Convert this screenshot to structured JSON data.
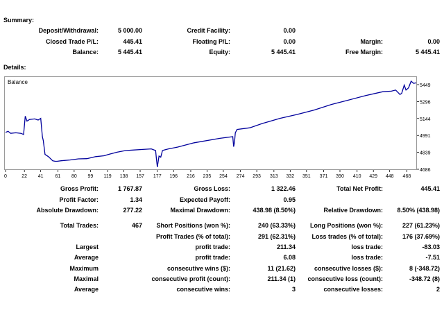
{
  "summary": {
    "heading": "Summary:",
    "rows": [
      [
        {
          "label": "Deposit/Withdrawal:",
          "value": "5 000.00"
        },
        {
          "label": "Credit Facility:",
          "value": "0.00"
        },
        {
          "label": "",
          "value": ""
        }
      ],
      [
        {
          "label": "Closed Trade P/L:",
          "value": "445.41"
        },
        {
          "label": "Floating P/L:",
          "value": "0.00"
        },
        {
          "label": "Margin:",
          "value": "0.00"
        }
      ],
      [
        {
          "label": "Balance:",
          "value": "5 445.41"
        },
        {
          "label": "Equity:",
          "value": "5 445.41"
        },
        {
          "label": "Free Margin:",
          "value": "5 445.41"
        }
      ]
    ]
  },
  "details": {
    "heading": "Details:"
  },
  "chart_data": {
    "type": "line",
    "title": "Balance",
    "xlabel": "",
    "ylabel": "",
    "xlim": [
      0,
      479
    ],
    "ylim": [
      4686,
      5502
    ],
    "x_ticks": [
      0,
      22,
      41,
      61,
      80,
      99,
      119,
      138,
      157,
      177,
      196,
      216,
      235,
      254,
      274,
      293,
      313,
      332,
      351,
      371,
      390,
      410,
      429,
      448,
      468
    ],
    "y_ticks": [
      5449,
      5296,
      5144,
      4991,
      4839,
      4686
    ],
    "grid": false,
    "color": "#00009c",
    "series": [
      {
        "name": "Balance",
        "x": [
          0,
          3,
          6,
          12,
          18,
          21,
          23,
          25,
          28,
          34,
          38,
          41,
          43,
          44,
          46,
          50,
          55,
          58,
          60,
          65,
          75,
          85,
          95,
          105,
          115,
          120,
          130,
          140,
          150,
          160,
          170,
          175,
          176,
          177,
          179,
          181,
          183,
          185,
          190,
          200,
          210,
          220,
          250,
          265,
          266,
          267,
          268,
          270,
          285,
          300,
          320,
          340,
          360,
          380,
          400,
          420,
          440,
          450,
          455,
          460,
          462,
          465,
          467,
          470,
          473,
          476,
          479
        ],
        "y": [
          5018,
          5028,
          5010,
          5015,
          5010,
          5000,
          5165,
          5120,
          5135,
          5140,
          5130,
          5145,
          4980,
          4945,
          4820,
          4800,
          4762,
          4758,
          4758,
          4763,
          4770,
          4780,
          4782,
          4800,
          4808,
          4820,
          4840,
          4855,
          4860,
          4865,
          4870,
          4855,
          4780,
          4706,
          4805,
          4795,
          4855,
          4860,
          4870,
          4885,
          4905,
          4925,
          4965,
          4980,
          4890,
          4930,
          5015,
          5045,
          5060,
          5100,
          5145,
          5180,
          5220,
          5270,
          5310,
          5350,
          5385,
          5390,
          5400,
          5360,
          5370,
          5445,
          5400,
          5420,
          5480,
          5460,
          5465
        ]
      }
    ]
  },
  "stats": {
    "row1": [
      {
        "label": "Gross Profit:",
        "value": "1 767.87"
      },
      {
        "label": "Gross Loss:",
        "value": "1 322.46"
      },
      {
        "label": "Total Net Profit:",
        "value": "445.41"
      }
    ],
    "row2": [
      {
        "label": "Profit Factor:",
        "value": "1.34"
      },
      {
        "label": "Expected Payoff:",
        "value": "0.95"
      },
      {
        "label": "",
        "value": ""
      }
    ],
    "row3": [
      {
        "label": "Absolute Drawdown:",
        "value": "277.22"
      },
      {
        "label": "Maximal Drawdown:",
        "value": "438.98 (8.50%)"
      },
      {
        "label": "Relative Drawdown:",
        "value": "8.50% (438.98)"
      }
    ],
    "row4": [
      {
        "label": "Total Trades:",
        "value": "467"
      },
      {
        "label": "Short Positions (won %):",
        "value": "240 (63.33%)"
      },
      {
        "label": "Long Positions (won %):",
        "value": "227 (61.23%)"
      }
    ],
    "row5": [
      {
        "label": "",
        "value": ""
      },
      {
        "label": "Profit Trades (% of total):",
        "value": "291 (62.31%)"
      },
      {
        "label": "Loss trades (% of total):",
        "value": "176 (37.69%)"
      }
    ],
    "row6": [
      {
        "label": "Largest",
        "value": ""
      },
      {
        "label": "profit trade:",
        "value": "211.34"
      },
      {
        "label": "loss trade:",
        "value": "-83.03"
      }
    ],
    "row7": [
      {
        "label": "Average",
        "value": ""
      },
      {
        "label": "profit trade:",
        "value": "6.08"
      },
      {
        "label": "loss trade:",
        "value": "-7.51"
      }
    ],
    "row8": [
      {
        "label": "Maximum",
        "value": ""
      },
      {
        "label": "consecutive wins ($):",
        "value": "11 (21.62)"
      },
      {
        "label": "consecutive losses ($):",
        "value": "8 (-348.72)"
      }
    ],
    "row9": [
      {
        "label": "Maximal",
        "value": ""
      },
      {
        "label": "consecutive profit (count):",
        "value": "211.34 (1)"
      },
      {
        "label": "consecutive loss (count):",
        "value": "-348.72 (8)"
      }
    ],
    "row10": [
      {
        "label": "Average",
        "value": ""
      },
      {
        "label": "consecutive wins:",
        "value": "3"
      },
      {
        "label": "consecutive losses:",
        "value": "2"
      }
    ]
  }
}
